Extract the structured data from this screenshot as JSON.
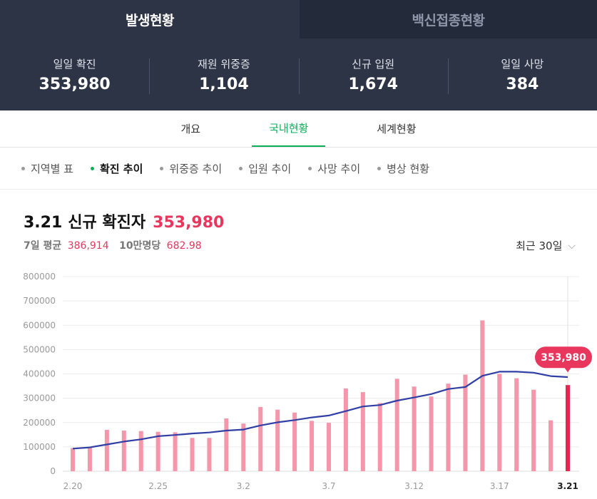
{
  "top_tabs": [
    {
      "label": "발생현황",
      "active": true
    },
    {
      "label": "백신접종현황",
      "active": false
    }
  ],
  "stats": [
    {
      "label": "일일 확진",
      "value": "353,980"
    },
    {
      "label": "재원 위중증",
      "value": "1,104"
    },
    {
      "label": "신규 입원",
      "value": "1,674"
    },
    {
      "label": "일일 사망",
      "value": "384"
    }
  ],
  "sub_tabs": [
    {
      "label": "개요"
    },
    {
      "label": "국내현황",
      "active": true
    },
    {
      "label": "세계현황"
    }
  ],
  "filters": [
    {
      "label": "지역별 표"
    },
    {
      "label": "확진 추이",
      "active": true
    },
    {
      "label": "위중증 추이"
    },
    {
      "label": "입원 추이"
    },
    {
      "label": "사망 추이"
    },
    {
      "label": "병상 현황"
    }
  ],
  "headline": {
    "date": "3.21",
    "title": "신규 확진자",
    "value": "353,980"
  },
  "subline": {
    "avg_label": "7일 평균",
    "avg_value": "386,914",
    "per_label": "10만명당",
    "per_value": "682.98"
  },
  "period_select": {
    "selected": "최근 30일",
    "icon": "chevron-down-icon"
  },
  "colors": {
    "bar": "#f596aa",
    "bar_last": "#e8254f",
    "line": "#2f3fa6",
    "accent": "#e8365d",
    "green": "#0aaf58"
  },
  "chart_data": {
    "type": "bar",
    "categories": [
      "2.20",
      "2.21",
      "2.22",
      "2.23",
      "2.24",
      "2.25",
      "2.26",
      "2.27",
      "2.28",
      "3.1",
      "3.2",
      "3.3",
      "3.4",
      "3.5",
      "3.6",
      "3.7",
      "3.8",
      "3.9",
      "3.10",
      "3.11",
      "3.12",
      "3.13",
      "3.14",
      "3.15",
      "3.16",
      "3.17",
      "3.18",
      "3.19",
      "3.20",
      "3.21"
    ],
    "x_tick_labels": [
      "2.20",
      "2.25",
      "3.2",
      "3.7",
      "3.12",
      "3.17",
      "3.21"
    ],
    "series": [
      {
        "kind": "bar",
        "values": [
          95000,
          100000,
          170000,
          167000,
          165000,
          162000,
          160000,
          137000,
          137000,
          217000,
          196000,
          264000,
          253000,
          241000,
          207000,
          199000,
          340000,
          325000,
          280000,
          380000,
          348000,
          307000,
          360000,
          397000,
          620000,
          400000,
          382000,
          335000,
          209000,
          353980
        ]
      },
      {
        "kind": "line",
        "values": [
          93000,
          98000,
          110000,
          122000,
          131000,
          144000,
          149000,
          155000,
          159000,
          167000,
          171000,
          188000,
          201000,
          210000,
          221000,
          229000,
          247000,
          266000,
          272000,
          290000,
          303000,
          317000,
          338000,
          346000,
          392000,
          409000,
          409000,
          405000,
          391000,
          386914
        ]
      }
    ],
    "y_ticks": [
      0,
      100000,
      200000,
      300000,
      400000,
      500000,
      600000,
      700000,
      800000
    ],
    "ylim": [
      0,
      800000
    ],
    "highlight": {
      "category": "3.21",
      "label": "353,980"
    },
    "grid": true
  }
}
